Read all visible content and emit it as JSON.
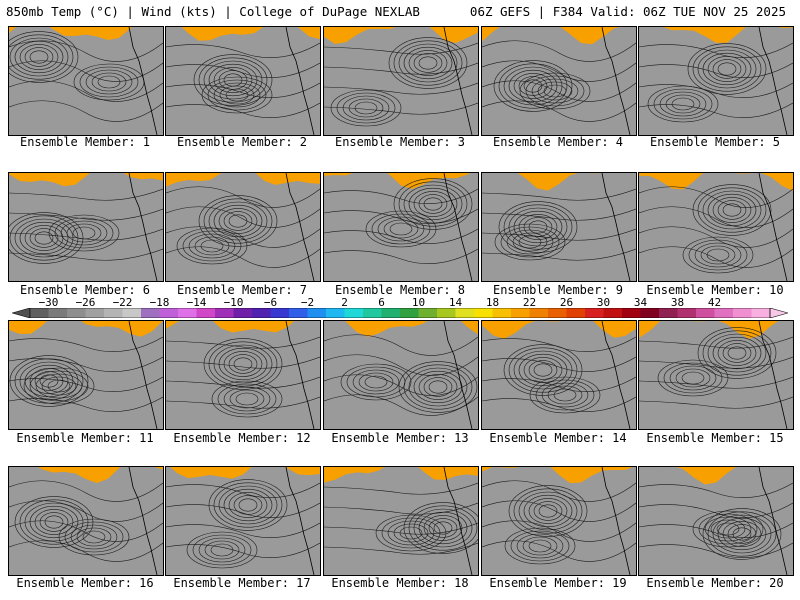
{
  "header": {
    "left": "850mb Temp (°C) | Wind (kts) | College of DuPage NEXLAB",
    "right": "06Z GEFS | F384 Valid: 06Z TUE NOV 25 2025"
  },
  "members": [
    "Ensemble Member: 1",
    "Ensemble Member: 2",
    "Ensemble Member: 3",
    "Ensemble Member: 4",
    "Ensemble Member: 5",
    "Ensemble Member: 6",
    "Ensemble Member: 7",
    "Ensemble Member: 8",
    "Ensemble Member: 9",
    "Ensemble Member: 10",
    "Ensemble Member: 11",
    "Ensemble Member: 12",
    "Ensemble Member: 13",
    "Ensemble Member: 14",
    "Ensemble Member: 15",
    "Ensemble Member: 16",
    "Ensemble Member: 17",
    "Ensemble Member: 18",
    "Ensemble Member: 19",
    "Ensemble Member: 20"
  ],
  "colorbar": {
    "ticks": [
      "−30",
      "−26",
      "−22",
      "−18",
      "−14",
      "−10",
      "−6",
      "−2",
      "2",
      "6",
      "10",
      "14",
      "18",
      "22",
      "26",
      "30",
      "34",
      "38",
      "42"
    ],
    "colors": [
      "#606060",
      "#7a7a7a",
      "#8e8e8e",
      "#a0a0a0",
      "#b4b4b4",
      "#c8c8c8",
      "#a070c0",
      "#c060d8",
      "#e070e8",
      "#d048c8",
      "#a030b8",
      "#7020a8",
      "#5020b0",
      "#3838d0",
      "#3060e8",
      "#2090f0",
      "#20b8f0",
      "#20d8d8",
      "#20c8a0",
      "#20b070",
      "#30a040",
      "#70b030",
      "#a8c820",
      "#e0e020",
      "#f8e000",
      "#f8c000",
      "#f8a000",
      "#f08000",
      "#e86000",
      "#e04000",
      "#d82020",
      "#c01010",
      "#a00010",
      "#800020",
      "#902050",
      "#b03070",
      "#d050a0",
      "#e070c0",
      "#f090d0",
      "#f8b0e0"
    ]
  }
}
